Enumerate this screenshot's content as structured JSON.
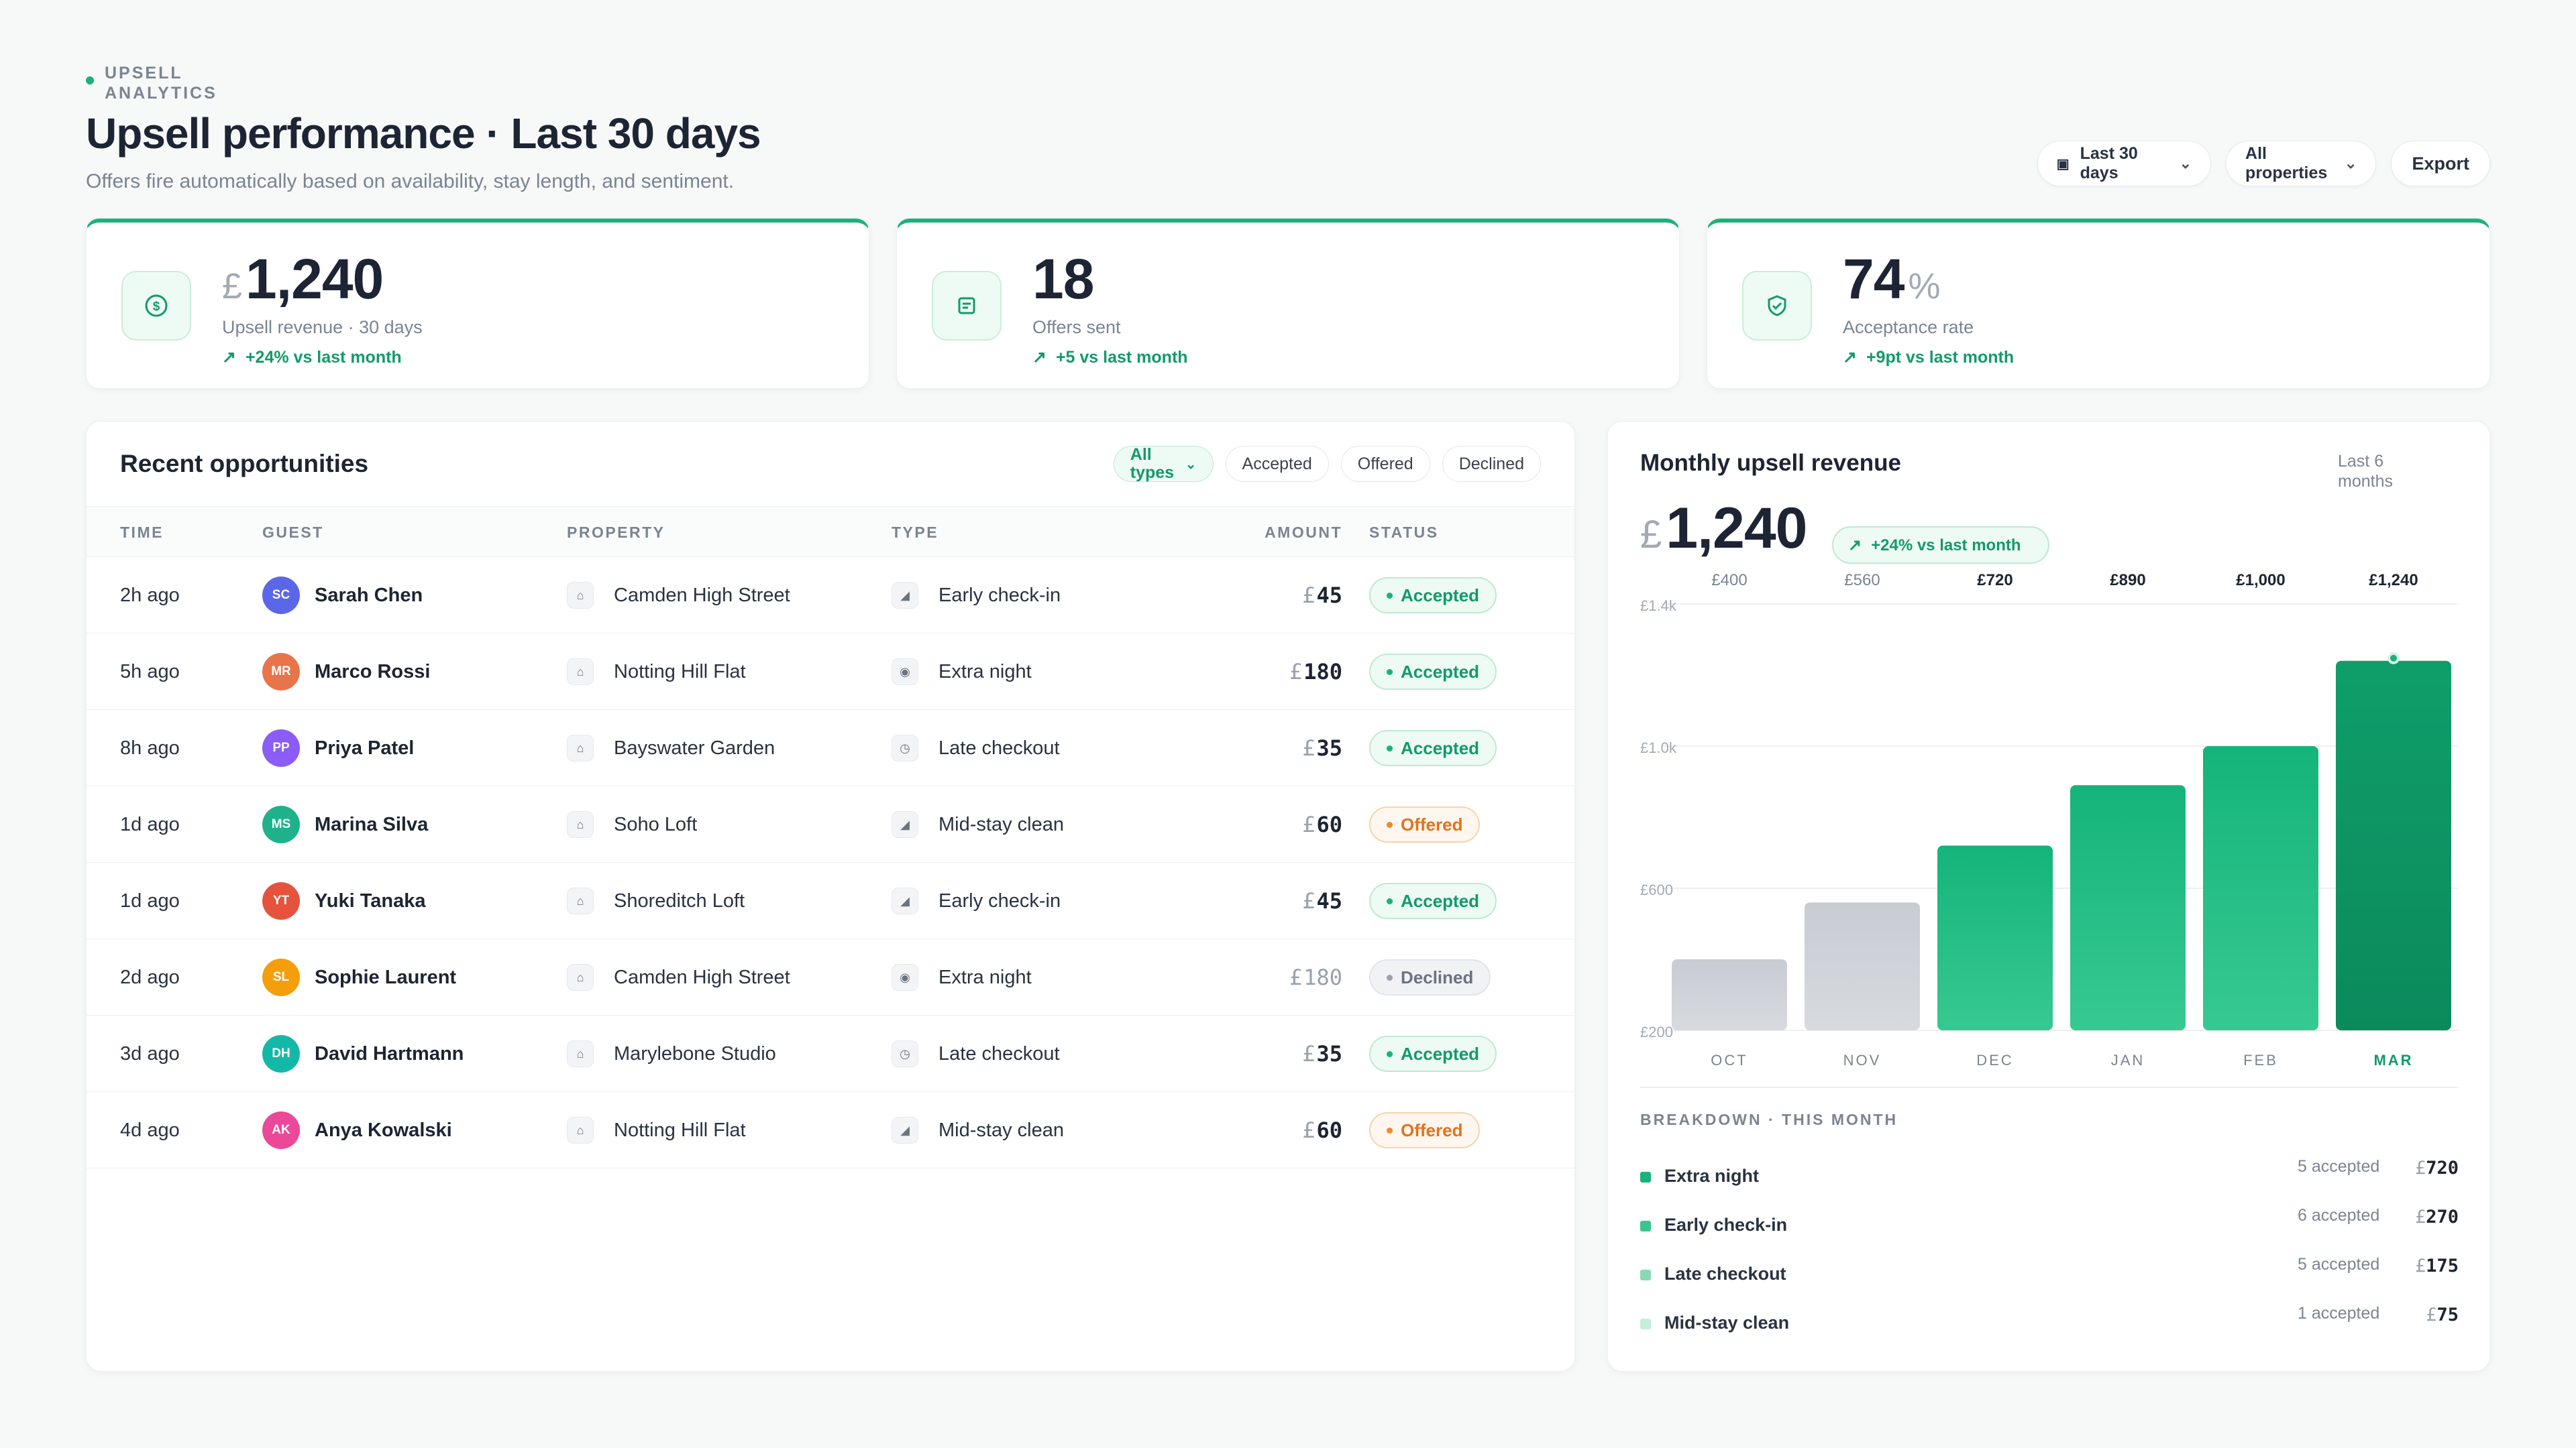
{
  "header": {
    "eyebrow": "UPSELL ANALYTICS",
    "title": "Upsell performance · Last 30 days",
    "subtitle": "Offers fire automatically based on availability, stay length, and sentiment.",
    "period_label": "Last 30 days",
    "property_label": "All properties",
    "export_label": "Export"
  },
  "kpis": [
    {
      "unit_prefix": "£",
      "value": "1,240",
      "label": "Upsell revenue · 30 days",
      "delta": "+24% vs last month",
      "icon": "dollar-icon"
    },
    {
      "value": "18",
      "label": "Offers sent",
      "delta": "+5 vs last month",
      "icon": "document-icon"
    },
    {
      "value": "74",
      "unit_suffix": "%",
      "label": "Acceptance rate",
      "delta": "+9pt vs last month",
      "icon": "shield-check-icon"
    }
  ],
  "opportunities": {
    "title": "Recent opportunities",
    "filters": [
      "All types",
      "Accepted",
      "Offered",
      "Declined"
    ],
    "columns": [
      "TIME",
      "GUEST",
      "PROPERTY",
      "TYPE",
      "AMOUNT",
      "STATUS"
    ],
    "rows": [
      {
        "time": "2h ago",
        "initials": "SC",
        "guest": "Sarah Chen",
        "property": "Camden High Street",
        "type": "Early check-in",
        "amount": "45",
        "status": "Accepted"
      },
      {
        "time": "5h ago",
        "initials": "MR",
        "guest": "Marco Rossi",
        "property": "Notting Hill Flat",
        "type": "Extra night",
        "amount": "180",
        "status": "Accepted"
      },
      {
        "time": "8h ago",
        "initials": "PP",
        "guest": "Priya Patel",
        "property": "Bayswater Garden",
        "type": "Late checkout",
        "amount": "35",
        "status": "Accepted"
      },
      {
        "time": "1d ago",
        "initials": "MS",
        "guest": "Marina Silva",
        "property": "Soho Loft",
        "type": "Mid-stay clean",
        "amount": "60",
        "status": "Offered"
      },
      {
        "time": "1d ago",
        "initials": "YT",
        "guest": "Yuki Tanaka",
        "property": "Shoreditch Loft",
        "type": "Early check-in",
        "amount": "45",
        "status": "Accepted"
      },
      {
        "time": "2d ago",
        "initials": "SL",
        "guest": "Sophie Laurent",
        "property": "Camden High Street",
        "type": "Extra night",
        "amount": "180",
        "status": "Declined"
      },
      {
        "time": "3d ago",
        "initials": "DH",
        "guest": "David Hartmann",
        "property": "Marylebone Studio",
        "type": "Late checkout",
        "amount": "35",
        "status": "Accepted"
      },
      {
        "time": "4d ago",
        "initials": "AK",
        "guest": "Anya Kowalski",
        "property": "Notting Hill Flat",
        "type": "Mid-stay clean",
        "amount": "60",
        "status": "Offered"
      }
    ],
    "currency": "£"
  },
  "colors": {
    "accent": "#19b27a",
    "avatars": [
      "#5a67e8",
      "#e8744a",
      "#8b5cf6",
      "#1fb28a",
      "#e5533d",
      "#f59e0b",
      "#14b8a6",
      "#ec4899"
    ]
  },
  "revenue": {
    "title": "Monthly upsell revenue",
    "range": "Last 6 months",
    "currency": "£",
    "total": "1,240",
    "delta": "+24% vs last month",
    "breakdown_title": "BREAKDOWN · THIS MONTH",
    "breakdown": [
      {
        "name": "Extra night",
        "count": "5 accepted",
        "amount": "720",
        "color": "#19b27a"
      },
      {
        "name": "Early check-in",
        "count": "6 accepted",
        "amount": "270",
        "color": "#3cc48f"
      },
      {
        "name": "Late checkout",
        "count": "5 accepted",
        "amount": "175",
        "color": "#8ad9b6"
      },
      {
        "name": "Mid-stay clean",
        "count": "1 accepted",
        "amount": "75",
        "color": "#c6ecdb"
      }
    ]
  },
  "chart_data": {
    "type": "bar",
    "categories": [
      "OCT",
      "NOV",
      "DEC",
      "JAN",
      "FEB",
      "MAR"
    ],
    "values": [
      400,
      560,
      720,
      890,
      1000,
      1240
    ],
    "value_labels": [
      "£400",
      "£560",
      "£720",
      "£890",
      "£1,000",
      "£1,240"
    ],
    "y_ticks": [
      200,
      600,
      1000,
      1400
    ],
    "y_tick_labels": [
      "£200",
      "£600",
      "£1.0k",
      "£1.4k"
    ],
    "ylim": [
      200,
      1400
    ],
    "grid": true,
    "highlight_category": "MAR",
    "title": "Monthly upsell revenue"
  }
}
